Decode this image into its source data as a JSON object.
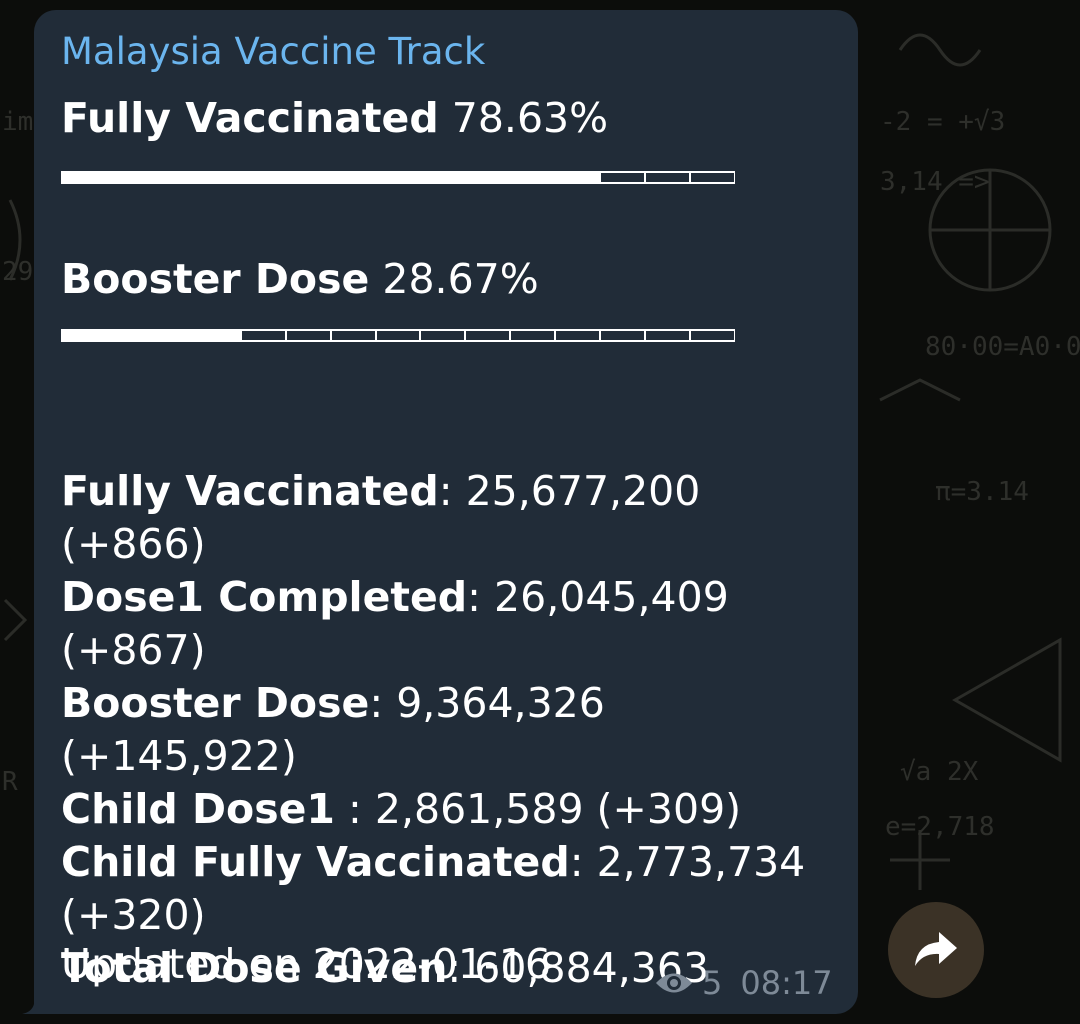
{
  "message": {
    "channel_name": "Malaysia Vaccine Track",
    "progress": [
      {
        "label": "Fully Vaccinated",
        "value": "78.63%",
        "fraction": 0.7863
      },
      {
        "label": "Booster Dose",
        "value": "28.67%",
        "fraction": 0.2867
      }
    ],
    "stats": [
      {
        "label": "Fully Vaccinated",
        "sep": ":",
        "value": "25,677,200 (+866)"
      },
      {
        "label": "Dose1 Completed",
        "sep": ":",
        "value": "26,045,409 (+867)"
      },
      {
        "label": "Booster Dose",
        "sep": ":",
        "value": "9,364,326 (+145,922)"
      },
      {
        "label": "Child Dose1",
        "sep": " :",
        "value": "2,861,589 (+309)"
      },
      {
        "label": "Child Fully Vaccinated",
        "sep": ":",
        "value": "2,773,734 (+320)"
      },
      {
        "label": "Total Dose Given",
        "sep": ":",
        "value": "60,884,363"
      }
    ],
    "updated": "Updated on 2022-01-16",
    "views": "5",
    "time": "08:17"
  },
  "icons": {
    "views": "eye-icon",
    "share": "share-arrow-icon"
  },
  "colors": {
    "bubble": "#212c38",
    "channel_name": "#6bb5ee",
    "meta": "#7e8a97",
    "share_button": "#3b3226"
  }
}
